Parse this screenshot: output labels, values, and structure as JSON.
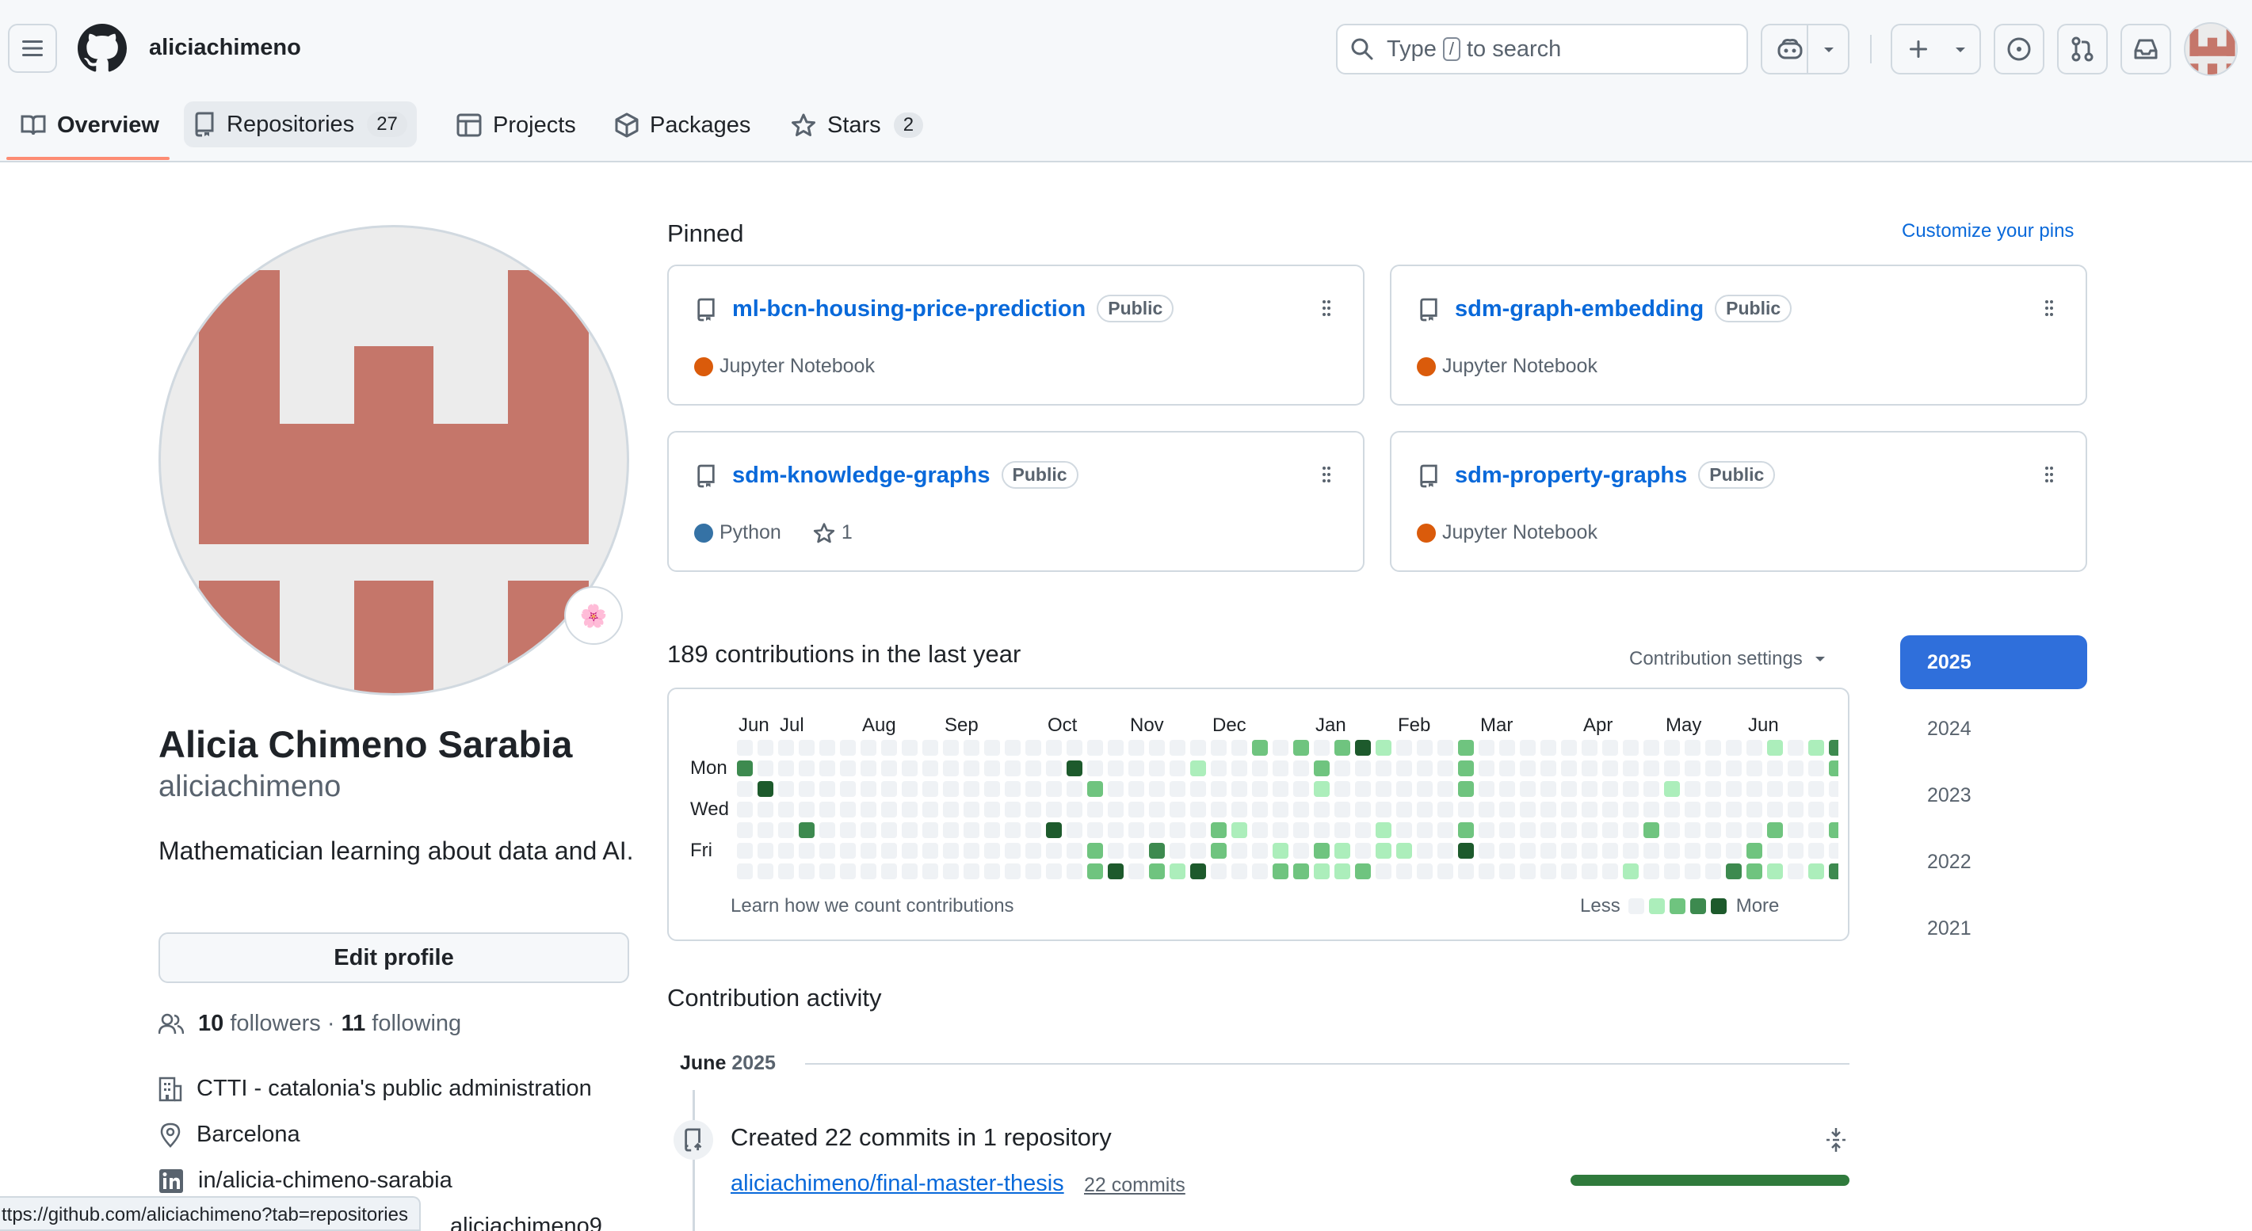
{
  "header": {
    "username": "aliciachimeno",
    "search": {
      "before": "Type",
      "key": "/",
      "after": "to search"
    },
    "tabs": [
      {
        "label": "Overview"
      },
      {
        "label": "Repositories",
        "count": "27"
      },
      {
        "label": "Projects"
      },
      {
        "label": "Packages"
      },
      {
        "label": "Stars",
        "count": "2"
      }
    ]
  },
  "profile": {
    "name": "Alicia Chimeno Sarabia",
    "login": "aliciachimeno",
    "bio": "Mathematician learning about data and AI.",
    "status_emoji": "🌸",
    "edit_label": "Edit profile",
    "followers_count": "10",
    "followers_label": "followers",
    "separator": "·",
    "following_count": "11",
    "following_label": "following",
    "company": "CTTI - catalonia's public administration",
    "location": "Barcelona",
    "linkedin": "in/alicia-chimeno-sarabia",
    "partial_link": "aliciachimeno9"
  },
  "pinned": {
    "title": "Pinned",
    "customize": "Customize your pins",
    "repos": [
      {
        "name": "ml-bcn-housing-price-prediction",
        "visibility": "Public",
        "language": "Jupyter Notebook",
        "lang_color": "#DA5B0B"
      },
      {
        "name": "sdm-graph-embedding",
        "visibility": "Public",
        "language": "Jupyter Notebook",
        "lang_color": "#DA5B0B"
      },
      {
        "name": "sdm-knowledge-graphs",
        "visibility": "Public",
        "language": "Python",
        "lang_color": "#3572A5",
        "stars": "1"
      },
      {
        "name": "sdm-property-graphs",
        "visibility": "Public",
        "language": "Jupyter Notebook",
        "lang_color": "#DA5B0B"
      }
    ]
  },
  "contributions": {
    "title": "189 contributions in the last year",
    "settings": "Contribution settings",
    "months": [
      "Jun",
      "Jul",
      "Aug",
      "Sep",
      "Oct",
      "Nov",
      "Dec",
      "Jan",
      "Feb",
      "Mar",
      "Apr",
      "May",
      "Jun"
    ],
    "days": [
      "Mon",
      "Wed",
      "Fri"
    ],
    "learn": "Learn how we count contributions",
    "less": "Less",
    "more": "More",
    "colors": [
      "#eff2f5",
      "#aceebb",
      "#6fc47f",
      "#3d8a4f",
      "#1d5a2c"
    ],
    "cells": [
      [
        0,
        3,
        0,
        0,
        0,
        0,
        0
      ],
      [
        0,
        0,
        4,
        0,
        0,
        0,
        0
      ],
      [
        0,
        0,
        0,
        0,
        0,
        0,
        0
      ],
      [
        0,
        0,
        0,
        0,
        3,
        0,
        0
      ],
      [
        0,
        0,
        0,
        0,
        0,
        0,
        0
      ],
      [
        0,
        0,
        0,
        0,
        0,
        0,
        0
      ],
      [
        0,
        0,
        0,
        0,
        0,
        0,
        0
      ],
      [
        0,
        0,
        0,
        0,
        0,
        0,
        0
      ],
      [
        0,
        0,
        0,
        0,
        0,
        0,
        0
      ],
      [
        0,
        0,
        0,
        0,
        0,
        0,
        0
      ],
      [
        0,
        0,
        0,
        0,
        0,
        0,
        0
      ],
      [
        0,
        0,
        0,
        0,
        0,
        0,
        0
      ],
      [
        0,
        0,
        0,
        0,
        0,
        0,
        0
      ],
      [
        0,
        0,
        0,
        0,
        0,
        0,
        0
      ],
      [
        0,
        0,
        0,
        0,
        0,
        0,
        0
      ],
      [
        0,
        0,
        0,
        0,
        4,
        0,
        0
      ],
      [
        0,
        4,
        0,
        0,
        0,
        0,
        0
      ],
      [
        0,
        0,
        2,
        0,
        0,
        2,
        2
      ],
      [
        0,
        0,
        0,
        0,
        0,
        0,
        4
      ],
      [
        0,
        0,
        0,
        0,
        0,
        0,
        0
      ],
      [
        0,
        0,
        0,
        0,
        0,
        3,
        2
      ],
      [
        0,
        0,
        0,
        0,
        0,
        0,
        1
      ],
      [
        0,
        1,
        0,
        0,
        0,
        0,
        4
      ],
      [
        0,
        0,
        0,
        0,
        2,
        2,
        0
      ],
      [
        0,
        0,
        0,
        0,
        1,
        0,
        0
      ],
      [
        2,
        0,
        0,
        0,
        0,
        0,
        0
      ],
      [
        0,
        0,
        0,
        0,
        0,
        1,
        2
      ],
      [
        2,
        0,
        0,
        0,
        0,
        0,
        2
      ],
      [
        0,
        2,
        1,
        0,
        0,
        2,
        1
      ],
      [
        2,
        0,
        0,
        0,
        0,
        1,
        1
      ],
      [
        4,
        0,
        0,
        0,
        0,
        0,
        2
      ],
      [
        1,
        0,
        0,
        0,
        1,
        1,
        0
      ],
      [
        0,
        0,
        0,
        0,
        0,
        1,
        0
      ],
      [
        0,
        0,
        0,
        0,
        0,
        0,
        0
      ],
      [
        0,
        0,
        0,
        0,
        0,
        0,
        0
      ],
      [
        2,
        2,
        2,
        0,
        2,
        4,
        0
      ],
      [
        0,
        0,
        0,
        0,
        0,
        0,
        0
      ],
      [
        0,
        0,
        0,
        0,
        0,
        0,
        0
      ],
      [
        0,
        0,
        0,
        0,
        0,
        0,
        0
      ],
      [
        0,
        0,
        0,
        0,
        0,
        0,
        0
      ],
      [
        0,
        0,
        0,
        0,
        0,
        0,
        0
      ],
      [
        0,
        0,
        0,
        0,
        0,
        0,
        0
      ],
      [
        0,
        0,
        0,
        0,
        0,
        0,
        0
      ],
      [
        0,
        0,
        0,
        0,
        0,
        0,
        1
      ],
      [
        0,
        0,
        0,
        0,
        2,
        0,
        0
      ],
      [
        0,
        0,
        1,
        0,
        0,
        0,
        0
      ],
      [
        0,
        0,
        0,
        0,
        0,
        0,
        0
      ],
      [
        0,
        0,
        0,
        0,
        0,
        0,
        0
      ],
      [
        0,
        0,
        0,
        0,
        0,
        0,
        3
      ],
      [
        0,
        0,
        0,
        0,
        0,
        2,
        2
      ],
      [
        1,
        0,
        0,
        0,
        2,
        0,
        1
      ],
      [
        0,
        0,
        0,
        0,
        0,
        0,
        0
      ],
      [
        1,
        0,
        0,
        0,
        0,
        0,
        1
      ],
      [
        3,
        2,
        0,
        0,
        2,
        0,
        3
      ],
      [
        1,
        0,
        0,
        0,
        0,
        0,
        0
      ]
    ]
  },
  "years": [
    "2025",
    "2024",
    "2023",
    "2022",
    "2021"
  ],
  "activity": {
    "title": "Contribution activity",
    "month": "June",
    "year": "2025",
    "event": "Created 22 commits in 1 repository",
    "repo_link": "aliciachimeno/final-master-thesis",
    "commits": "22 commits",
    "bar_color": "#2f7a3c"
  },
  "statusbar": {
    "url": "ttps://github.com/aliciachimeno?tab=repositories"
  }
}
